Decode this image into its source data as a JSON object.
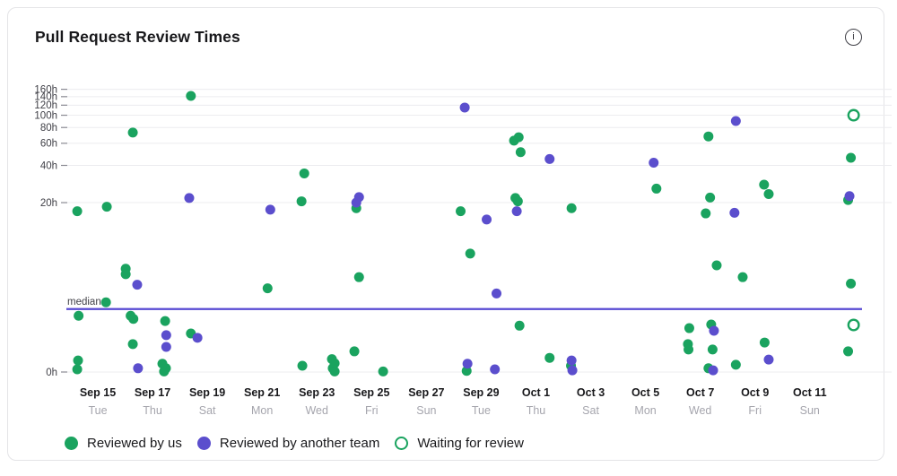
{
  "header": {
    "title": "Pull Request Review Times",
    "info_icon_glyph": "i"
  },
  "legend": {
    "items": [
      {
        "label": "Reviewed by us",
        "style": "filled",
        "color": "#1aa35f"
      },
      {
        "label": "Reviewed by another team",
        "style": "filled",
        "color": "#5b4ecd"
      },
      {
        "label": "Waiting for review",
        "style": "open",
        "color": "#1aa35f"
      }
    ]
  },
  "chart_data": {
    "type": "scatter",
    "title": "Pull Request Review Times",
    "y_axis": {
      "unit": "h",
      "scale": "log(hours+1)",
      "ticks_hours": [
        160,
        140,
        120,
        100,
        80,
        60,
        40,
        20,
        0
      ],
      "range_hours": [
        0,
        170
      ],
      "grid": true
    },
    "x_axis": {
      "day_zero_label": "Sep 15",
      "tick_day_step": 2,
      "ticks": [
        {
          "label": "Sep 15",
          "weekday": "Tue",
          "day": 0
        },
        {
          "label": "Sep 17",
          "weekday": "Thu",
          "day": 2
        },
        {
          "label": "Sep 19",
          "weekday": "Sat",
          "day": 4
        },
        {
          "label": "Sep 21",
          "weekday": "Mon",
          "day": 6
        },
        {
          "label": "Sep 23",
          "weekday": "Wed",
          "day": 8
        },
        {
          "label": "Sep 25",
          "weekday": "Fri",
          "day": 10
        },
        {
          "label": "Sep 27",
          "weekday": "Sun",
          "day": 12
        },
        {
          "label": "Sep 29",
          "weekday": "Tue",
          "day": 14
        },
        {
          "label": "Oct 1",
          "weekday": "Thu",
          "day": 16
        },
        {
          "label": "Oct 3",
          "weekday": "Sat",
          "day": 18
        },
        {
          "label": "Oct 5",
          "weekday": "Mon",
          "day": 20
        },
        {
          "label": "Oct 7",
          "weekday": "Wed",
          "day": 22
        },
        {
          "label": "Oct 9",
          "weekday": "Fri",
          "day": 24
        },
        {
          "label": "Oct 11",
          "weekday": "Sun",
          "day": 26
        }
      ]
    },
    "median_line": {
      "label": "median",
      "hours": 2.1,
      "color": "#5749d2"
    },
    "series": [
      {
        "name": "Reviewed by us",
        "style": "filled",
        "color": "#1aa35f",
        "points_day_hours": [
          [
            -0.75,
            17
          ],
          [
            0.33,
            18.5
          ],
          [
            1.28,
            73
          ],
          [
            3.4,
            142
          ],
          [
            7.54,
            34.5
          ],
          [
            7.44,
            20.5
          ],
          [
            9.44,
            18
          ],
          [
            13.25,
            17
          ],
          [
            13.6,
            7.4
          ],
          [
            9.54,
            4.5
          ],
          [
            15.2,
            63
          ],
          [
            15.37,
            67
          ],
          [
            15.44,
            51
          ],
          [
            20.4,
            26
          ],
          [
            15.25,
            21.8
          ],
          [
            15.34,
            20.5
          ],
          [
            17.3,
            18
          ],
          [
            22.3,
            68
          ],
          [
            22.36,
            22
          ],
          [
            22.2,
            16.3
          ],
          [
            24.33,
            28
          ],
          [
            24.5,
            23.5
          ],
          [
            27.5,
            46
          ],
          [
            27.4,
            21
          ],
          [
            27.5,
            3.9
          ],
          [
            27.4,
            0.45
          ],
          [
            0.3,
            2.5
          ],
          [
            -0.7,
            1.75
          ],
          [
            1.2,
            1.75
          ],
          [
            1.3,
            1.6
          ],
          [
            2.46,
            1.5
          ],
          [
            3.4,
            1.0
          ],
          [
            1.28,
            0.65
          ],
          [
            -0.72,
            0.23
          ],
          [
            -0.75,
            0.05
          ],
          [
            1.02,
            5.4
          ],
          [
            1.02,
            4.8
          ],
          [
            6.2,
            3.5
          ],
          [
            2.36,
            0.16
          ],
          [
            2.49,
            0.07
          ],
          [
            2.42,
            0.01
          ],
          [
            7.47,
            0.12
          ],
          [
            8.55,
            0.26
          ],
          [
            8.65,
            0.17
          ],
          [
            8.58,
            0.07
          ],
          [
            8.65,
            0.01
          ],
          [
            9.37,
            0.45
          ],
          [
            10.42,
            0.01
          ],
          [
            13.47,
            0.02
          ],
          [
            15.4,
            1.3
          ],
          [
            16.5,
            0.29
          ],
          [
            17.28,
            0.12
          ],
          [
            21.6,
            1.2
          ],
          [
            22.4,
            1.35
          ],
          [
            21.55,
            0.65
          ],
          [
            21.57,
            0.5
          ],
          [
            22.45,
            0.5
          ],
          [
            22.3,
            0.07
          ],
          [
            23.3,
            0.14
          ],
          [
            24.35,
            0.7
          ],
          [
            22.6,
            5.8
          ],
          [
            23.55,
            4.5
          ]
        ]
      },
      {
        "name": "Reviewed by another team",
        "style": "filled",
        "color": "#5b4ecd",
        "points_day_hours": [
          [
            3.34,
            21.8
          ],
          [
            6.3,
            17.5
          ],
          [
            9.54,
            22.2
          ],
          [
            9.44,
            20
          ],
          [
            13.4,
            115
          ],
          [
            14.2,
            14.5
          ],
          [
            16.5,
            45
          ],
          [
            20.3,
            42
          ],
          [
            15.3,
            17
          ],
          [
            23.3,
            90
          ],
          [
            23.25,
            16.5
          ],
          [
            27.45,
            22.6
          ],
          [
            14.56,
            3.1
          ],
          [
            1.44,
            3.8
          ],
          [
            2.5,
            0.94
          ],
          [
            3.64,
            0.85
          ],
          [
            2.5,
            0.57
          ],
          [
            1.47,
            0.07
          ],
          [
            13.5,
            0.16
          ],
          [
            14.5,
            0.05
          ],
          [
            17.3,
            0.23
          ],
          [
            17.33,
            0.03
          ],
          [
            22.5,
            1.1
          ],
          [
            22.47,
            0.03
          ],
          [
            24.5,
            0.25
          ]
        ]
      },
      {
        "name": "Waiting for review",
        "style": "open",
        "color": "#1aa35f",
        "points_day_hours": [
          [
            27.6,
            100
          ],
          [
            27.6,
            1.33
          ]
        ]
      }
    ]
  }
}
